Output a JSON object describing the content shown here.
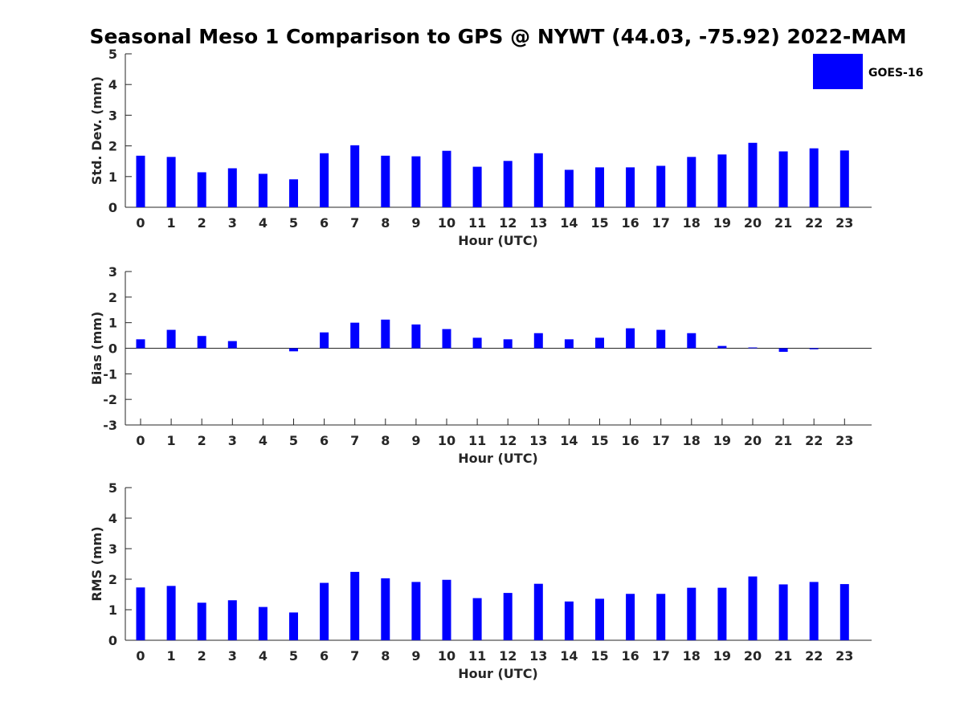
{
  "title": "Seasonal Meso 1 Comparison to GPS @ NYWT (44.03, -75.92) 2022-MAM",
  "legend": {
    "label": "GOES-16",
    "color": "#0000ff"
  },
  "chart_data": [
    {
      "type": "bar",
      "name": "std-dev",
      "ylabel": "Std. Dev. (mm)",
      "xlabel": "Hour (UTC)",
      "ylim": [
        0,
        5
      ],
      "yticks": [
        0,
        1,
        2,
        3,
        4,
        5
      ],
      "categories": [
        "0",
        "1",
        "2",
        "3",
        "4",
        "5",
        "6",
        "7",
        "8",
        "9",
        "10",
        "11",
        "12",
        "13",
        "14",
        "15",
        "16",
        "17",
        "18",
        "19",
        "20",
        "21",
        "22",
        "23"
      ],
      "series": [
        {
          "name": "GOES-16",
          "values": [
            1.68,
            1.64,
            1.14,
            1.27,
            1.09,
            0.91,
            1.76,
            2.02,
            1.68,
            1.66,
            1.84,
            1.32,
            1.51,
            1.76,
            1.22,
            1.3,
            1.3,
            1.35,
            1.64,
            1.72,
            2.1,
            1.82,
            1.92,
            1.85
          ]
        }
      ]
    },
    {
      "type": "bar",
      "name": "bias",
      "ylabel": "Bias (mm)",
      "xlabel": "Hour (UTC)",
      "ylim": [
        -3,
        3
      ],
      "yticks": [
        -3,
        -2,
        -1,
        0,
        1,
        2,
        3
      ],
      "categories": [
        "0",
        "1",
        "2",
        "3",
        "4",
        "5",
        "6",
        "7",
        "8",
        "9",
        "10",
        "11",
        "12",
        "13",
        "14",
        "15",
        "16",
        "17",
        "18",
        "19",
        "20",
        "21",
        "22",
        "23"
      ],
      "series": [
        {
          "name": "GOES-16",
          "values": [
            0.35,
            0.72,
            0.48,
            0.28,
            0.0,
            -0.12,
            0.62,
            1.0,
            1.12,
            0.93,
            0.75,
            0.41,
            0.35,
            0.59,
            0.35,
            0.41,
            0.78,
            0.72,
            0.59,
            0.09,
            0.03,
            -0.14,
            -0.04,
            0.0
          ]
        }
      ]
    },
    {
      "type": "bar",
      "name": "rms",
      "ylabel": "RMS (mm)",
      "xlabel": "Hour (UTC)",
      "ylim": [
        0,
        5
      ],
      "yticks": [
        0,
        1,
        2,
        3,
        4,
        5
      ],
      "categories": [
        "0",
        "1",
        "2",
        "3",
        "4",
        "5",
        "6",
        "7",
        "8",
        "9",
        "10",
        "11",
        "12",
        "13",
        "14",
        "15",
        "16",
        "17",
        "18",
        "19",
        "20",
        "21",
        "22",
        "23"
      ],
      "series": [
        {
          "name": "GOES-16",
          "values": [
            1.73,
            1.78,
            1.23,
            1.31,
            1.09,
            0.91,
            1.88,
            2.24,
            2.03,
            1.91,
            1.98,
            1.38,
            1.55,
            1.85,
            1.27,
            1.36,
            1.52,
            1.52,
            1.72,
            1.72,
            2.09,
            1.83,
            1.91,
            1.84
          ]
        }
      ]
    }
  ]
}
